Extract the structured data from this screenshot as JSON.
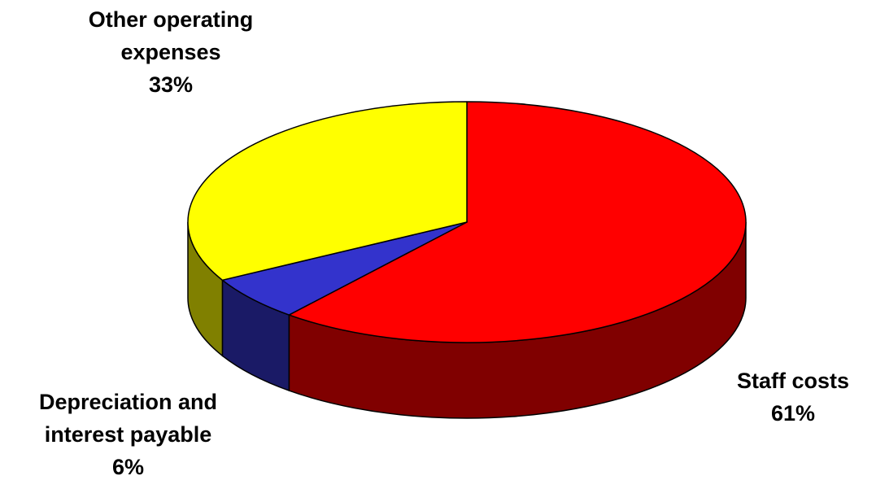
{
  "chart_data": {
    "type": "pie",
    "title": "",
    "style": "3d",
    "slices": [
      {
        "label_lines": [
          "Staff costs"
        ],
        "value": 61,
        "percent_label": "61%",
        "color": "#FF0000",
        "side_color": "#800000"
      },
      {
        "label_lines": [
          "Depreciation and",
          "interest payable"
        ],
        "value": 6,
        "percent_label": "6%",
        "color": "#3333CC",
        "side_color": "#1A1A66"
      },
      {
        "label_lines": [
          "Other operating",
          "expenses"
        ],
        "value": 33,
        "percent_label": "33%",
        "color": "#FFFF00",
        "side_color": "#808000"
      }
    ]
  }
}
